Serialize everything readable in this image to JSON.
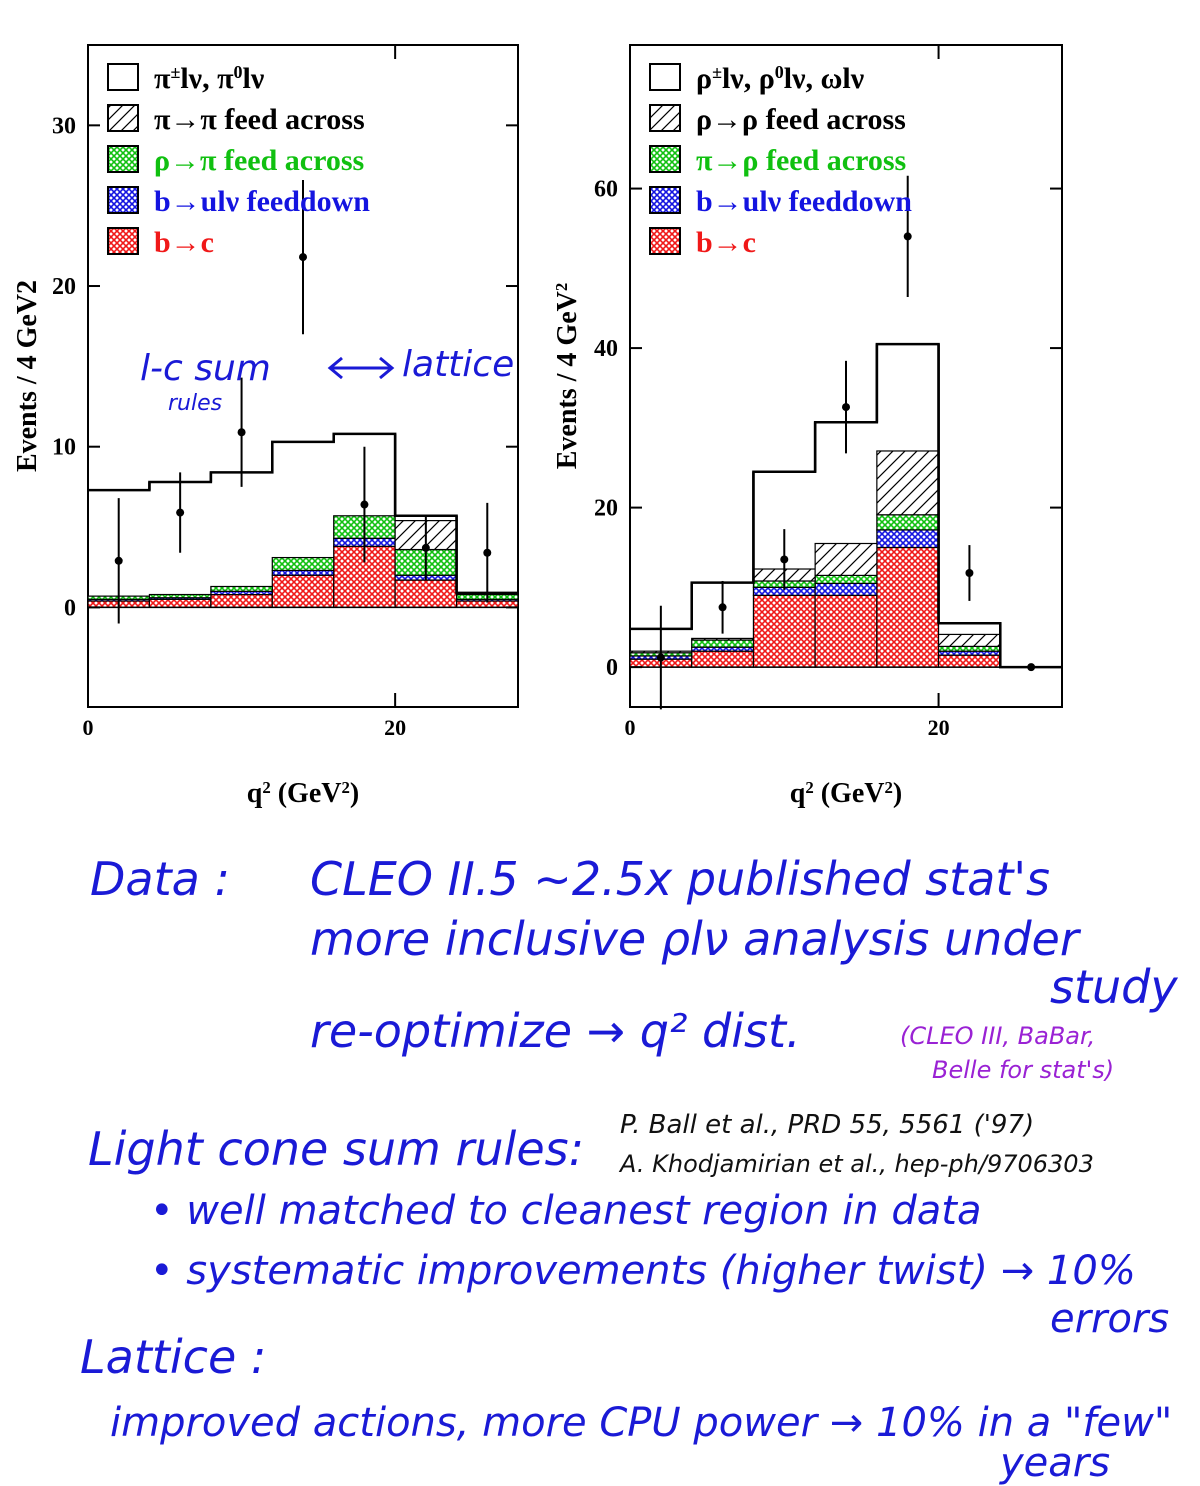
{
  "colors": {
    "signal": "#000000",
    "feed_same": "#000000",
    "feed_cross": "#10c010",
    "feeddown": "#1414e0",
    "b_to_c": "#f01818",
    "handwriting": "#1a1ad6",
    "handwriting_purple": "#9a22d4"
  },
  "chart_data": [
    {
      "type": "bar",
      "stacked_histogram": true,
      "ylabel": "Events / 4 GeV2",
      "xlabel_base": "q",
      "xlabel_sup": "2",
      "xlabel_units": "(GeV",
      "xlabel_units_sup": "2",
      "xlabel_close": ")",
      "xlim": [
        0,
        28
      ],
      "ylim": [
        -6.2,
        35
      ],
      "xticks": [
        0,
        20
      ],
      "yticks": [
        0,
        10,
        20,
        30
      ],
      "bin_edges": [
        0,
        4,
        8,
        12,
        16,
        20,
        24,
        28
      ],
      "legend": [
        {
          "key": "signal",
          "text": "π±lν, π0lν",
          "color": "#000000",
          "style": "empty"
        },
        {
          "key": "feed_same",
          "text": "π→π feed across",
          "color": "#000000",
          "style": "hatch"
        },
        {
          "key": "feed_cross",
          "text": "ρ→π feed across",
          "color": "#10c010",
          "style": "cross"
        },
        {
          "key": "feeddown",
          "text": "b→ulν feeddown",
          "color": "#1414e0",
          "style": "cross"
        },
        {
          "key": "b_to_c",
          "text": "b→c",
          "color": "#f01818",
          "style": "cross"
        }
      ],
      "legend_rich": [
        [
          "π",
          "±",
          "lν, π",
          "0",
          "lν"
        ],
        [
          "π→π feed across"
        ],
        [
          "ρ→π feed across"
        ],
        [
          "b→ulν feeddown"
        ],
        [
          "b→c"
        ]
      ],
      "series": [
        {
          "name": "b→c",
          "key": "b_to_c",
          "values": [
            0.4,
            0.5,
            0.8,
            2.0,
            3.8,
            1.7,
            0.4
          ]
        },
        {
          "name": "b→ulν feeddown",
          "key": "feeddown",
          "values": [
            0.1,
            0.1,
            0.2,
            0.3,
            0.5,
            0.3,
            0.1
          ]
        },
        {
          "name": "ρ→π feed across",
          "key": "feed_cross",
          "values": [
            0.2,
            0.2,
            0.3,
            0.8,
            1.4,
            1.6,
            0.3
          ]
        },
        {
          "name": "π→π feed across",
          "key": "feed_same",
          "values": [
            0.0,
            0.0,
            0.0,
            0.0,
            0.0,
            1.8,
            0.0
          ]
        },
        {
          "name": "π±lν, π0lν",
          "key": "signal",
          "totals": [
            7.3,
            7.8,
            8.4,
            10.3,
            10.8,
            5.7,
            0.9
          ]
        }
      ],
      "points": [
        {
          "x": 2,
          "y": 2.9,
          "err": 3.9
        },
        {
          "x": 6,
          "y": 5.9,
          "err": 2.5
        },
        {
          "x": 10,
          "y": 10.9,
          "err": 3.4
        },
        {
          "x": 14,
          "y": 21.8,
          "err": 4.8
        },
        {
          "x": 18,
          "y": 6.4,
          "err": 3.6
        },
        {
          "x": 22,
          "y": 3.7,
          "err": 2.0
        },
        {
          "x": 26,
          "y": 3.4,
          "err": 3.1
        }
      ]
    },
    {
      "type": "bar",
      "stacked_histogram": true,
      "ylabel": "Events / 4 GeV",
      "ylabel_sup": "2",
      "xlabel_base": "q",
      "xlabel_sup": "2",
      "xlabel_units": "(GeV",
      "xlabel_units_sup": "2",
      "xlabel_close": ")",
      "xlim": [
        0,
        28
      ],
      "ylim": [
        -5,
        78
      ],
      "xticks": [
        0,
        20
      ],
      "yticks": [
        0,
        20,
        40,
        60
      ],
      "bin_edges": [
        0,
        4,
        8,
        12,
        16,
        20,
        24,
        28
      ],
      "legend": [
        {
          "key": "signal",
          "text": "ρ±lν, ρ0lν, ωlν",
          "color": "#000000",
          "style": "empty"
        },
        {
          "key": "feed_same",
          "text": "ρ→ρ feed across",
          "color": "#000000",
          "style": "hatch"
        },
        {
          "key": "feed_cross",
          "text": "π→ρ feed across",
          "color": "#10c010",
          "style": "cross"
        },
        {
          "key": "feeddown",
          "text": "b→ulν feeddown",
          "color": "#1414e0",
          "style": "cross"
        },
        {
          "key": "b_to_c",
          "text": "b→c",
          "color": "#f01818",
          "style": "cross"
        }
      ],
      "legend_rich": [
        [
          "ρ",
          "±",
          "lν, ρ",
          "0",
          "lν, ωlν"
        ],
        [
          "ρ→ρ feed across"
        ],
        [
          "π→ρ feed across"
        ],
        [
          "b→ulν feeddown"
        ],
        [
          "b→c"
        ]
      ],
      "series": [
        {
          "name": "b→c",
          "key": "b_to_c",
          "values": [
            1.0,
            2.0,
            9.0,
            9.0,
            15.0,
            1.5,
            0.0
          ]
        },
        {
          "name": "b→ulν feeddown",
          "key": "feeddown",
          "values": [
            0.4,
            0.5,
            1.0,
            1.5,
            2.2,
            0.5,
            0.0
          ]
        },
        {
          "name": "π→ρ feed across",
          "key": "feed_cross",
          "values": [
            0.4,
            0.9,
            0.8,
            1.0,
            1.9,
            0.6,
            0.0
          ]
        },
        {
          "name": "ρ→ρ feed across",
          "key": "feed_same",
          "values": [
            0.2,
            0.2,
            1.5,
            4.0,
            8.0,
            1.5,
            0.0
          ]
        },
        {
          "name": "ρ±lν, ρ0lν, ωlν",
          "key": "signal",
          "totals": [
            4.8,
            10.6,
            24.5,
            30.7,
            40.5,
            5.5,
            0.0
          ]
        }
      ],
      "points": [
        {
          "x": 2,
          "y": 1.2,
          "err": 6.5
        },
        {
          "x": 6,
          "y": 7.5,
          "err": 3.3
        },
        {
          "x": 10,
          "y": 13.5,
          "err": 3.8
        },
        {
          "x": 14,
          "y": 32.6,
          "err": 5.8
        },
        {
          "x": 18,
          "y": 54.0,
          "err": 7.6
        },
        {
          "x": 22,
          "y": 11.8,
          "err": 3.5
        },
        {
          "x": 26,
          "y": 0.0,
          "err": 0.0
        }
      ]
    }
  ],
  "chart_annotations": {
    "arrow_note_a": "l-c sum",
    "arrow_note_b": "lattice",
    "arrow_note_c": "rules"
  },
  "notes": {
    "data_label": "Data :",
    "data_line1": "CLEO II.5    ~2.5x published stat's",
    "data_line2": "more inclusive ρlν analysis under",
    "data_line2b": "study",
    "data_line3": "re-optimize → q² dist.",
    "data_purple1": "(CLEO III, BaBar,",
    "data_purple2": "Belle for stat's)",
    "lc_label": "Light cone sum rules:",
    "ref1": "P. Ball et al., PRD 55, 5561 ('97)",
    "ref2": "A. Khodjamirian et al., hep-ph/9706303",
    "lc_bullet1": "• well matched to cleanest region in data",
    "lc_bullet2": "• systematic improvements (higher twist) → 10%",
    "lc_bullet2b": "errors",
    "lattice_label": "Lattice :",
    "lattice_line1": "improved actions, more CPU power → 10% in a \"few\"",
    "lattice_line1b": "years"
  }
}
